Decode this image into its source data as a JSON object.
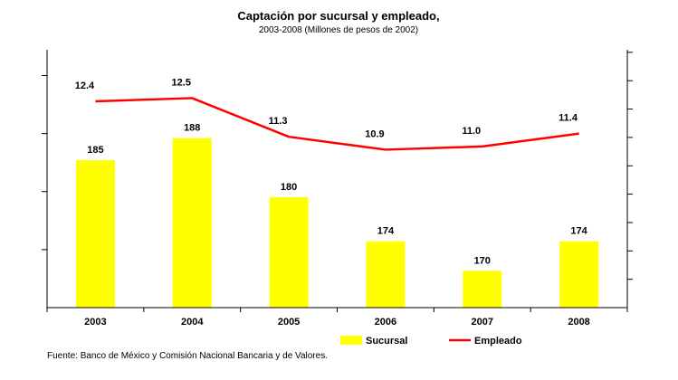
{
  "chart_data": {
    "type": "bar",
    "title": "Captación por sucursal y empleado,",
    "subtitle": "2003-2008  (Millones de pesos de 2002)",
    "categories": [
      "2003",
      "2004",
      "2005",
      "2006",
      "2007",
      "2008"
    ],
    "series": [
      {
        "name": "Sucursal",
        "type": "bar",
        "axis": "left",
        "color": "#FFFF00",
        "values": [
          185,
          188,
          180,
          174,
          170,
          174
        ]
      },
      {
        "name": "Empleado",
        "type": "line",
        "axis": "right",
        "color": "#FF0000",
        "values": [
          12.4,
          12.5,
          11.3,
          10.9,
          11.0,
          11.4
        ]
      }
    ],
    "y_left_range": [
      165,
      200
    ],
    "y_right_range": [
      6,
      14
    ],
    "grid": false,
    "legend_position": "bottom"
  },
  "source_note": "Fuente: Banco de México y Comisión Nacional Bancaria y de Valores."
}
